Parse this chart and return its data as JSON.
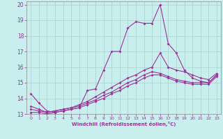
{
  "bg_color": "#c8eeee",
  "grid_color": "#aacccc",
  "line_color": "#993399",
  "xlim_min": -0.5,
  "xlim_max": 23.5,
  "ylim_min": 13.0,
  "ylim_max": 20.2,
  "xticks": [
    0,
    1,
    2,
    3,
    4,
    5,
    6,
    7,
    8,
    9,
    10,
    11,
    12,
    13,
    14,
    15,
    16,
    17,
    18,
    19,
    20,
    21,
    22,
    23
  ],
  "yticks": [
    13,
    14,
    15,
    16,
    17,
    18,
    19,
    20
  ],
  "xlabel": "Windchill (Refroidissement éolien,°C)",
  "line1_x": [
    0,
    1,
    2,
    3,
    4,
    5,
    6,
    7,
    8,
    9,
    10,
    11,
    12,
    13,
    14,
    15,
    16,
    17,
    18,
    19,
    20,
    21,
    22,
    23
  ],
  "line1_y": [
    14.3,
    13.7,
    13.2,
    13.1,
    13.2,
    13.3,
    13.4,
    14.5,
    14.6,
    15.8,
    17.0,
    17.0,
    18.5,
    18.9,
    18.8,
    18.8,
    20.0,
    17.5,
    16.9,
    15.8,
    15.3,
    15.1,
    15.0,
    15.5
  ],
  "line2_x": [
    0,
    1,
    2,
    3,
    4,
    5,
    6,
    7,
    8,
    9,
    10,
    11,
    12,
    13,
    14,
    15,
    16,
    17,
    18,
    19,
    20,
    21,
    22,
    23
  ],
  "line2_y": [
    13.5,
    13.3,
    13.1,
    13.2,
    13.3,
    13.4,
    13.6,
    13.8,
    14.1,
    14.4,
    14.7,
    15.0,
    15.3,
    15.5,
    15.8,
    16.0,
    16.9,
    16.0,
    15.8,
    15.7,
    15.5,
    15.3,
    15.2,
    15.6
  ],
  "line3_x": [
    0,
    1,
    2,
    3,
    4,
    5,
    6,
    7,
    8,
    9,
    10,
    11,
    12,
    13,
    14,
    15,
    16,
    17,
    18,
    19,
    20,
    21,
    22,
    23
  ],
  "line3_y": [
    13.3,
    13.2,
    13.1,
    13.2,
    13.3,
    13.4,
    13.5,
    13.7,
    13.9,
    14.2,
    14.4,
    14.7,
    15.0,
    15.2,
    15.5,
    15.7,
    15.6,
    15.4,
    15.2,
    15.1,
    15.0,
    15.0,
    15.0,
    15.5
  ],
  "line4_x": [
    0,
    1,
    2,
    3,
    4,
    5,
    6,
    7,
    8,
    9,
    10,
    11,
    12,
    13,
    14,
    15,
    16,
    17,
    18,
    19,
    20,
    21,
    22,
    23
  ],
  "line4_y": [
    13.1,
    13.1,
    13.0,
    13.1,
    13.2,
    13.3,
    13.4,
    13.6,
    13.8,
    14.0,
    14.3,
    14.5,
    14.8,
    15.0,
    15.3,
    15.5,
    15.5,
    15.3,
    15.1,
    15.0,
    14.9,
    14.9,
    14.9,
    15.4
  ]
}
